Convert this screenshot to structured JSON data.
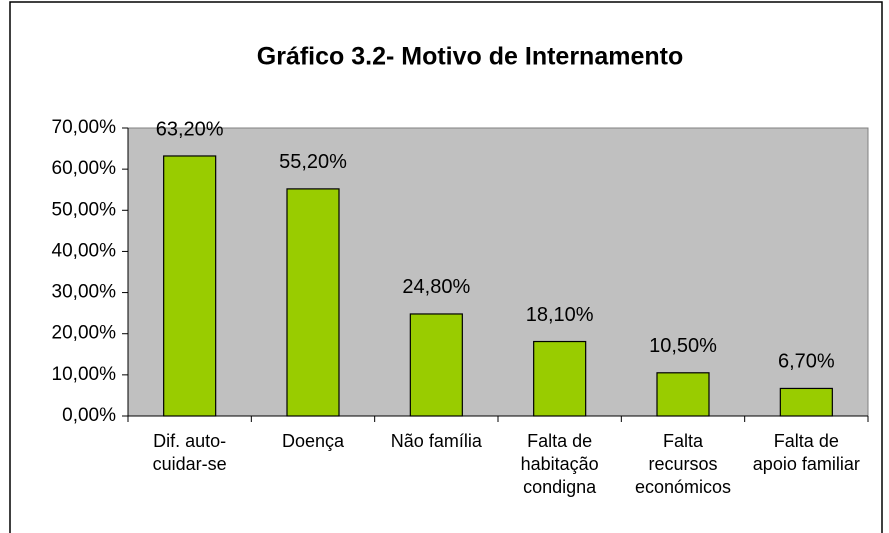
{
  "chart_data": {
    "type": "bar",
    "title": "Gráfico 3.2- Motivo de Internamento",
    "categories": [
      "Dif. auto-\ncuidar-se",
      "Doença",
      "Não família",
      "Falta de\nhabitação\ncondigna",
      "Falta\nrecursos\neconómicos",
      "Falta de\napoio familiar"
    ],
    "values": [
      63.2,
      55.2,
      24.8,
      18.1,
      10.5,
      6.7
    ],
    "value_labels": [
      "63,20%",
      "55,20%",
      "24,80%",
      "18,10%",
      "10,50%",
      "6,70%"
    ],
    "color": "#99cc00",
    "ylim": [
      0,
      70
    ],
    "yticks": [
      {
        "value": 0,
        "label": "0,00%"
      },
      {
        "value": 10,
        "label": "10,00%"
      },
      {
        "value": 20,
        "label": "20,00%"
      },
      {
        "value": 30,
        "label": "30,00%"
      },
      {
        "value": 40,
        "label": "40,00%"
      },
      {
        "value": 50,
        "label": "50,00%"
      },
      {
        "value": 60,
        "label": "60,00%"
      },
      {
        "value": 70,
        "label": "70,00%"
      }
    ],
    "grid": false
  }
}
